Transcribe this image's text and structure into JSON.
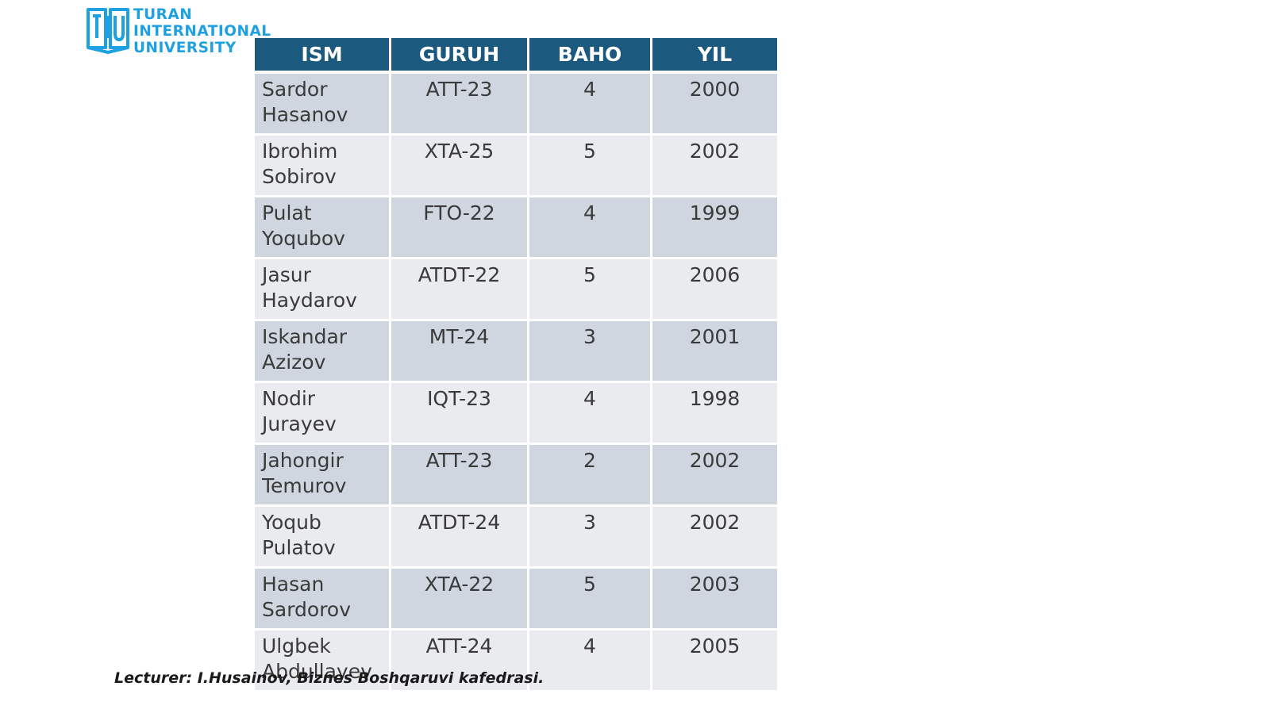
{
  "logo": {
    "line1": "TURAN",
    "line2": "INTERNATIONAL",
    "line3": "UNIVERSITY",
    "icon": "tiu-book-logo-icon",
    "color": "#1fa0e0"
  },
  "table": {
    "header_color": "#1b5a7e",
    "headers": [
      "ISM",
      "GURUH",
      "BAHO",
      "YIL"
    ],
    "rows": [
      {
        "ism_first": "Sardor",
        "ism_last": "Hasanov",
        "guruh": "ATT-23",
        "baho": "4",
        "yil": "2000"
      },
      {
        "ism_first": "Ibrohim",
        "ism_last": "Sobirov",
        "guruh": "XTA-25",
        "baho": "5",
        "yil": "2002"
      },
      {
        "ism_first": "Pulat",
        "ism_last": "Yoqubov",
        "guruh": "FTO-22",
        "baho": "4",
        "yil": "1999"
      },
      {
        "ism_first": "Jasur",
        "ism_last": "Haydarov",
        "guruh": "ATDT-22",
        "baho": "5",
        "yil": "2006"
      },
      {
        "ism_first": "Iskandar",
        "ism_last": "Azizov",
        "guruh": "MT-24",
        "baho": "3",
        "yil": "2001"
      },
      {
        "ism_first": "Nodir",
        "ism_last": "Jurayev",
        "guruh": "IQT-23",
        "baho": "4",
        "yil": "1998"
      },
      {
        "ism_first": "Jahongir",
        "ism_last": "Temurov",
        "guruh": "ATT-23",
        "baho": "2",
        "yil": "2002"
      },
      {
        "ism_first": "Yoqub",
        "ism_last": "Pulatov",
        "guruh": "ATDT-24",
        "baho": "3",
        "yil": "2002"
      },
      {
        "ism_first": "Hasan",
        "ism_last": "Sardorov",
        "guruh": "XTA-22",
        "baho": "5",
        "yil": "2003"
      },
      {
        "ism_first": "Ulgbek",
        "ism_last": "Abdullayev",
        "guruh": "ATT-24",
        "baho": "4",
        "yil": "2005"
      }
    ]
  },
  "footer": {
    "text": "Lecturer: I.Husainov, Biznes Boshqaruvi kafedrasi."
  }
}
